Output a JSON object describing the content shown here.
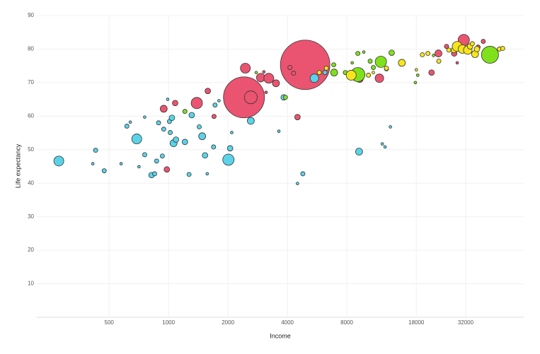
{
  "chart_data": {
    "type": "scatter",
    "x_label": "Income",
    "y_label": "Life expectancy",
    "log_x": true,
    "grid": true,
    "xlim": [
      215,
      63000
    ],
    "ylim": [
      0,
      90
    ],
    "xticks": [
      500,
      1000,
      2000,
      4000,
      8000,
      18000,
      32000
    ],
    "yticks": [
      10,
      20,
      30,
      40,
      50,
      60,
      70,
      80,
      90
    ],
    "series": [
      {
        "color": "#ea5470",
        "x": [
          4920,
          2410,
          2610,
          2450,
          2930,
          3220,
          3500,
          3040,
          4120,
          4300,
          4500,
          3120,
          945,
          1080,
          980,
          1390,
          1580,
          1700,
          9300,
          11700,
          21500,
          23300,
          31300,
          28000,
          37000,
          29000,
          25600,
          45500,
          39300
        ],
        "y": [
          75.3,
          65.6,
          65.6,
          74.3,
          71.5,
          71.3,
          69.8,
          73.2,
          74.5,
          72.8,
          59.7,
          67.1,
          62.2,
          63.9,
          44.1,
          63.9,
          67.5,
          59.9,
          71.1,
          71.3,
          73,
          78.7,
          82.7,
          78.7,
          80.6,
          75.9,
          80.8,
          79.5,
          82.3
        ],
        "sizes": [
          1340,
          920,
          90,
          54,
          40,
          54,
          27,
          4,
          10,
          10,
          17,
          4,
          27,
          17,
          17,
          70,
          17,
          10,
          27,
          40,
          17,
          27,
          70,
          17,
          10,
          4,
          10,
          4,
          10
        ]
      },
      {
        "color": "#5ad3e8",
        "x": [
          278,
          427,
          413,
          472,
          575,
          615,
          640,
          690,
          708,
          757,
          757,
          820,
          850,
          870,
          890,
          930,
          945,
          990,
          1010,
          1020,
          1040,
          1060,
          1090,
          1210,
          1270,
          1310,
          1430,
          1480,
          1530,
          1570,
          1690,
          1720,
          1800,
          2010,
          2050,
          2090,
          2610,
          3620,
          3830,
          4500,
          4790,
          5480,
          9230,
          12100,
          12500,
          13300,
          6200
        ],
        "y": [
          46.6,
          49.8,
          45.8,
          43.7,
          45.8,
          57,
          58.2,
          53.2,
          44.9,
          59.7,
          48.5,
          42.4,
          42.8,
          46.6,
          58,
          48.1,
          56.1,
          65,
          58.4,
          55.1,
          59.5,
          51.9,
          53,
          52.3,
          42.6,
          60.3,
          56.8,
          54,
          48.3,
          42.8,
          50.8,
          63.3,
          64.6,
          47,
          50.4,
          55.1,
          58.6,
          55.5,
          65.6,
          39.9,
          42.8,
          71.3,
          49.4,
          51.7,
          50.8,
          56.8,
          73
        ],
        "sizes": [
          54,
          10,
          4,
          10,
          4,
          10,
          4,
          54,
          4,
          4,
          10,
          17,
          10,
          10,
          10,
          10,
          10,
          4,
          10,
          10,
          17,
          27,
          17,
          17,
          10,
          17,
          10,
          27,
          17,
          4,
          10,
          10,
          4,
          70,
          17,
          4,
          27,
          4,
          17,
          4,
          10,
          40,
          27,
          4,
          4,
          4,
          10
        ]
      },
      {
        "color": "#7fe11a",
        "x": [
          42500,
          9100,
          11900,
          3910,
          2780,
          6900,
          6870,
          7860,
          8520,
          9100,
          9750,
          10500,
          10900,
          13500,
          12700,
          18300,
          17800,
          1210,
          22000
        ],
        "y": [
          78.3,
          72.4,
          76.2,
          65.6,
          73,
          73,
          75.3,
          73,
          75.9,
          78.7,
          79.1,
          76.4,
          74.5,
          78.9,
          74.1,
          72.2,
          70,
          61.4,
          78.1
        ],
        "sizes": [
          160,
          110,
          70,
          10,
          4,
          27,
          10,
          10,
          4,
          10,
          4,
          10,
          10,
          17,
          10,
          4,
          4,
          10,
          4
        ]
      },
      {
        "color": "#f7e51c",
        "x": [
          8420,
          5800,
          6300,
          10300,
          12700,
          15200,
          18000,
          19300,
          20600,
          23400,
          26300,
          27900,
          29000,
          30800,
          32800,
          33700,
          34600,
          35700,
          36500,
          47400,
          49300,
          10900
        ],
        "y": [
          72.2,
          73,
          74.3,
          72.2,
          74.3,
          75.9,
          73.8,
          78.3,
          78.7,
          76.4,
          79.7,
          79.7,
          80.8,
          80,
          79.7,
          80.8,
          81.6,
          78.5,
          80,
          80,
          80.2,
          73
        ],
        "sizes": [
          54,
          10,
          10,
          10,
          10,
          27,
          4,
          10,
          10,
          10,
          10,
          17,
          54,
          40,
          40,
          17,
          10,
          27,
          17,
          10,
          10,
          4
        ]
      }
    ]
  }
}
